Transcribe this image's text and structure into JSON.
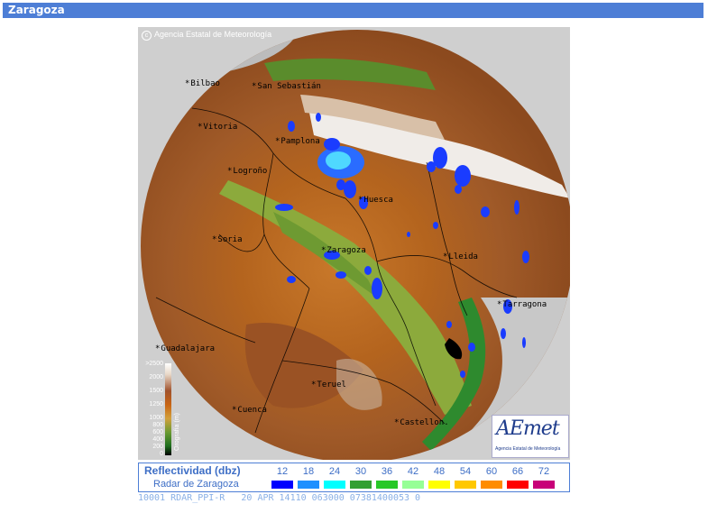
{
  "header": {
    "title": "Zaragoza"
  },
  "map": {
    "copyright": "Agencia Estatal de Meteorología",
    "cities": [
      {
        "name": "Bilbao"
      },
      {
        "name": "San Sebastián"
      },
      {
        "name": "Vitoria"
      },
      {
        "name": "Pamplona"
      },
      {
        "name": "Logroño"
      },
      {
        "name": "Huesca"
      },
      {
        "name": "Soria"
      },
      {
        "name": "Zaragoza"
      },
      {
        "name": "Lleida"
      },
      {
        "name": "Tarragona"
      },
      {
        "name": "Guadalajara"
      },
      {
        "name": "Teruel"
      },
      {
        "name": "Cuenca"
      },
      {
        "name": "Castellon."
      }
    ],
    "orography_legend": {
      "title": "Orografía (m)",
      "ticks": [
        ">2500",
        "2000",
        "1500",
        "1250",
        "1000",
        "800",
        "600",
        "400",
        "200",
        "0"
      ]
    },
    "logo": {
      "main": "AEmet",
      "sub": "Agencia Estatal de Meteorología"
    }
  },
  "reflectivity": {
    "title": "Reflectividad (dbz)",
    "subtitle": "Radar de Zaragoza",
    "scale": [
      {
        "value": "12",
        "color": "#0000ff"
      },
      {
        "value": "18",
        "color": "#1e90ff"
      },
      {
        "value": "24",
        "color": "#00ffff"
      },
      {
        "value": "30",
        "color": "#32a032"
      },
      {
        "value": "36",
        "color": "#28c828"
      },
      {
        "value": "42",
        "color": "#96ff96"
      },
      {
        "value": "48",
        "color": "#ffff00"
      },
      {
        "value": "54",
        "color": "#ffc800"
      },
      {
        "value": "60",
        "color": "#ff8c00"
      },
      {
        "value": "66",
        "color": "#ff0000"
      },
      {
        "value": "72",
        "color": "#c80078"
      }
    ]
  },
  "status_line": "10001 RDAR_PPI-R   20 APR 14110 063000 07381400053 0"
}
